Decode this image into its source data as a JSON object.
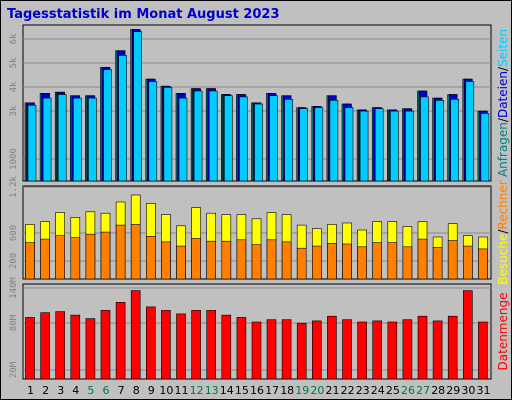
{
  "title": "Tagesstatistik im Monat August 2023",
  "colors": {
    "background": "#c0c0c0",
    "title": "#0000cc",
    "anfragen": "#008080",
    "dateien": "#0000cc",
    "seiten": "#00ccff",
    "besuche": "#ffff00",
    "rechner": "#ff8000",
    "datenmenge": "#ff0000",
    "weekend": "#007a3d",
    "weekday": "#000000"
  },
  "chart_data": [
    {
      "type": "bar",
      "panel": "requests",
      "ylabel_parts": [
        "Anfragen",
        "/",
        "Dateien",
        "/",
        "Seiten"
      ],
      "yticks": [
        "1000",
        "3k",
        "4k",
        "5k",
        "6k"
      ],
      "ylim": [
        0,
        6500
      ],
      "series": [
        {
          "name": "Anfragen",
          "values": [
            3300,
            3700,
            3750,
            3600,
            3600,
            4800,
            5500,
            6400,
            4300,
            4000,
            3700,
            3900,
            3900,
            3650,
            3650,
            3300,
            3700,
            3600,
            3100,
            3150,
            3600,
            3250,
            3000,
            3100,
            3000,
            3050,
            3800,
            3500,
            3650,
            4300,
            2950
          ]
        },
        {
          "name": "Dateien",
          "values": [
            3300,
            3700,
            3750,
            3600,
            3600,
            4800,
            5500,
            6400,
            4300,
            4000,
            3700,
            3900,
            3900,
            3650,
            3650,
            3300,
            3700,
            3600,
            3100,
            3150,
            3600,
            3250,
            3000,
            3100,
            3000,
            3050,
            3800,
            3500,
            3650,
            4300,
            2950
          ]
        },
        {
          "name": "Seiten",
          "values": [
            3200,
            3500,
            3650,
            3500,
            3500,
            4700,
            5300,
            6300,
            4200,
            3950,
            3500,
            3800,
            3800,
            3600,
            3550,
            3250,
            3600,
            3450,
            3050,
            3100,
            3400,
            3100,
            2950,
            3050,
            2950,
            2950,
            3550,
            3400,
            3450,
            4200,
            2850
          ]
        }
      ]
    },
    {
      "type": "bar",
      "panel": "visits",
      "ylabel_parts": [
        "Besuche",
        "/",
        "Rechner"
      ],
      "yticks": [
        "200",
        "600",
        "1.2k"
      ],
      "ylim": [
        0,
        1300
      ],
      "series": [
        {
          "name": "Besuche",
          "values": [
            780,
            820,
            950,
            880,
            960,
            940,
            1100,
            1200,
            1080,
            920,
            760,
            1020,
            940,
            920,
            920,
            860,
            950,
            920,
            770,
            720,
            780,
            800,
            700,
            820,
            820,
            750,
            820,
            600,
            790,
            620,
            600
          ]
        },
        {
          "name": "Rechner",
          "values": [
            520,
            570,
            620,
            590,
            640,
            670,
            770,
            780,
            610,
            530,
            470,
            580,
            540,
            540,
            560,
            490,
            560,
            530,
            440,
            470,
            510,
            500,
            460,
            520,
            520,
            460,
            570,
            450,
            550,
            470,
            430
          ]
        }
      ]
    },
    {
      "type": "bar",
      "panel": "traffic",
      "ylabel_parts": [
        "Datenmenge"
      ],
      "yticks": [
        "20M",
        "80M",
        "140M"
      ],
      "ylim": [
        0,
        160
      ],
      "series": [
        {
          "name": "Datenmenge",
          "values": [
            106,
            114,
            116,
            110,
            104,
            118,
            132,
            152,
            124,
            118,
            112,
            118,
            118,
            110,
            106,
            98,
            102,
            102,
            96,
            100,
            108,
            102,
            98,
            100,
            98,
            102,
            108,
            100,
            108,
            152,
            98
          ]
        }
      ]
    }
  ],
  "x_labels": [
    "1",
    "2",
    "3",
    "4",
    "5",
    "6",
    "7",
    "8",
    "9",
    "10",
    "11",
    "12",
    "13",
    "14",
    "15",
    "16",
    "17",
    "18",
    "19",
    "20",
    "21",
    "22",
    "23",
    "24",
    "25",
    "26",
    "27",
    "28",
    "29",
    "30",
    "31"
  ],
  "weekend_days": [
    5,
    6,
    12,
    13,
    19,
    20,
    26,
    27
  ]
}
